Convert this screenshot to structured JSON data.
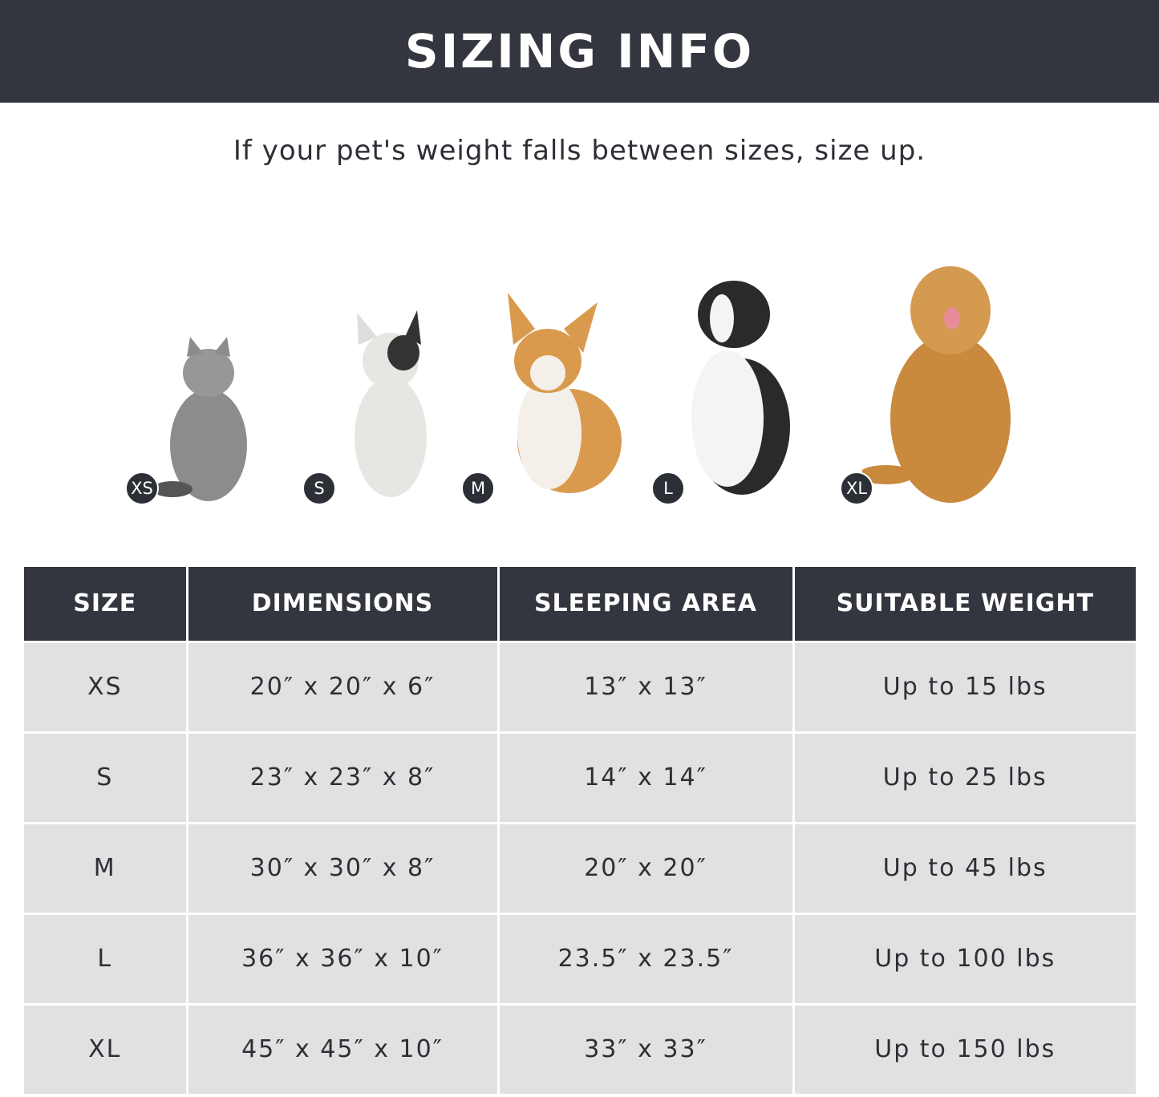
{
  "banner": {
    "title": "SIZING INFO"
  },
  "subtitle": "If your pet's weight falls between sizes, size up.",
  "pets": [
    {
      "badge": "XS",
      "animal": "cat",
      "color": "#8c8c8c"
    },
    {
      "badge": "S",
      "animal": "french-bulldog",
      "color": "#e8e6e2"
    },
    {
      "badge": "M",
      "animal": "corgi",
      "color": "#d99a4e"
    },
    {
      "badge": "L",
      "animal": "border-collie",
      "color": "#2a2a2a"
    },
    {
      "badge": "XL",
      "animal": "golden-retriever",
      "color": "#c98a3e"
    }
  ],
  "table": {
    "headers": [
      "SIZE",
      "DIMENSIONS",
      "SLEEPING AREA",
      "SUITABLE WEIGHT"
    ],
    "rows": [
      [
        "XS",
        "20″ x 20″ x 6″",
        "13″ x 13″",
        "Up to 15 lbs"
      ],
      [
        "S",
        "23″ x 23″ x 8″",
        "14″ x 14″",
        "Up to 25 lbs"
      ],
      [
        "M",
        "30″ x 30″ x 8″",
        "20″ x 20″",
        "Up to 45 lbs"
      ],
      [
        "L",
        "36″ x 36″ x 10″",
        "23.5″ x 23.5″",
        "Up to 100 lbs"
      ],
      [
        "XL",
        "45″ x 45″ x 10″",
        "33″ x 33″",
        "Up to 150 lbs"
      ]
    ]
  },
  "colors": {
    "header": "#33353f",
    "cell": "#e1e1e1"
  }
}
